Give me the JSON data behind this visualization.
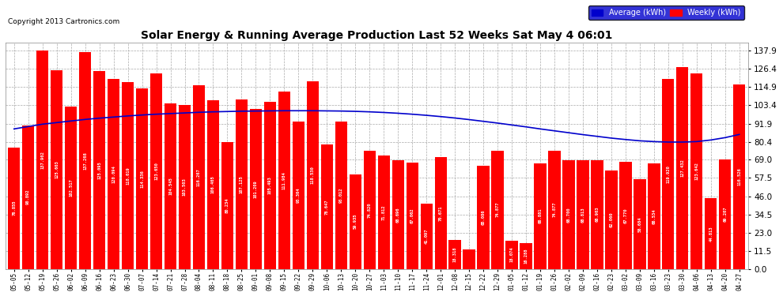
{
  "title": "Solar Energy & Running Average Production Last 52 Weeks Sat May 4 06:01",
  "copyright": "Copyright 2013 Cartronics.com",
  "legend_avg": "Average (kWh)",
  "legend_weekly": "Weekly (kWh)",
  "bar_color": "#ff0000",
  "avg_line_color": "#0000ff",
  "background_color": "#ffffff",
  "plot_bg_color": "#ffffff",
  "grid_color": "#aaaaaa",
  "ylim": [
    0,
    137.9
  ],
  "yticks": [
    0.0,
    11.5,
    23.0,
    34.5,
    46.0,
    57.5,
    69.0,
    80.4,
    91.9,
    103.4,
    114.9,
    126.4,
    137.9
  ],
  "categories": [
    "05-05",
    "05-12",
    "05-19",
    "05-26",
    "06-02",
    "06-09",
    "06-16",
    "06-23",
    "06-30",
    "07-07",
    "07-14",
    "07-21",
    "07-28",
    "08-04",
    "08-11",
    "08-18",
    "08-25",
    "09-01",
    "09-08",
    "09-15",
    "09-22",
    "09-29",
    "10-06",
    "10-13",
    "10-20",
    "10-27",
    "11-03",
    "11-10",
    "11-17",
    "11-24",
    "12-01",
    "12-08",
    "12-15",
    "12-22",
    "12-29",
    "01-05",
    "01-12",
    "01-19",
    "01-26",
    "02-02",
    "02-09",
    "02-16",
    "02-23",
    "03-02",
    "03-09",
    "03-16",
    "03-23",
    "03-30",
    "04-06",
    "04-13",
    "04-20",
    "04-27"
  ],
  "weekly_values": [
    76.855,
    90.892,
    137.902,
    125.603,
    102.517,
    137.268,
    125.095,
    120.094,
    118.019,
    114.336,
    123.65,
    104.545,
    103.503,
    116.267,
    106.465,
    80.234,
    107.125,
    101.209,
    105.493,
    111.984,
    93.364,
    118.53,
    78.647,
    93.012,
    59.935,
    74.82,
    71.812,
    68.696,
    67.062,
    41.097,
    70.671,
    18.318,
    12.279,
    65.086,
    74.877,
    18.074,
    16.288,
    66.881,
    74.877,
    68.7,
    68.813,
    68.903,
    62.06,
    67.77,
    56.684,
    66.534,
    119.92,
    127.432,
    123.642,
    44.813,
    69.207,
    116.526
  ],
  "avg_values": [
    88.5,
    90.0,
    91.5,
    92.5,
    93.5,
    94.5,
    95.3,
    96.0,
    96.7,
    97.3,
    97.8,
    98.2,
    98.6,
    99.0,
    99.3,
    99.5,
    99.7,
    99.8,
    99.9,
    100.0,
    100.0,
    100.0,
    99.9,
    99.8,
    99.6,
    99.3,
    98.9,
    98.4,
    97.8,
    97.1,
    96.3,
    95.4,
    94.4,
    93.3,
    92.2,
    91.0,
    89.8,
    88.5,
    87.3,
    86.1,
    84.9,
    83.8,
    82.7,
    81.8,
    81.0,
    80.5,
    80.2,
    80.2,
    80.5,
    81.5,
    83.0,
    85.0
  ]
}
